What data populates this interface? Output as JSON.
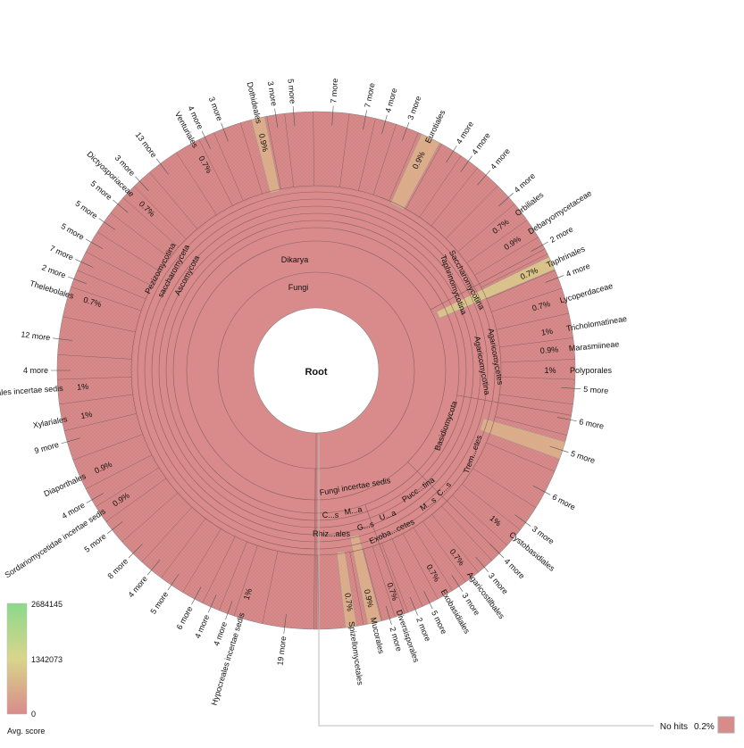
{
  "chart_data": {
    "type": "sunburst",
    "title": "",
    "root": {
      "label": "Root"
    },
    "inner_labels": [
      "Fungi",
      "Dikarya",
      "Ascomycota",
      "saccharomyceta",
      "Pezizomycotina",
      "Saccharomycotina",
      "Taphrinomycotina",
      "Agaricomycetes",
      "Agaricomycotina",
      "Basidiomycota",
      "Trem...etes",
      "Fungi incertae sedis",
      "C...s",
      "M...a",
      "Rhiz...ales",
      "G...s",
      "U...a",
      "Pucc...tina",
      "Exoba...cetes",
      "M...s",
      "C...s"
    ],
    "outer_labels": [
      {
        "label": "7 more"
      },
      {
        "label": "7 more"
      },
      {
        "label": "4 more"
      },
      {
        "label": "3 more"
      },
      {
        "label": "Eurotiales",
        "pct": "0.9%"
      },
      {
        "label": "4 more"
      },
      {
        "label": "4 more"
      },
      {
        "label": "4 more"
      },
      {
        "label": "4 more"
      },
      {
        "label": "Orbiliales",
        "pct": "0.7%"
      },
      {
        "label": "Debaryomycetaceae",
        "pct": "0.9%"
      },
      {
        "label": "2 more"
      },
      {
        "label": "Taphrinales",
        "pct": "0.7%"
      },
      {
        "label": "4 more"
      },
      {
        "label": "Lycoperdaceae",
        "pct": "0.7%"
      },
      {
        "label": "Tricholomatineae",
        "pct": "1%"
      },
      {
        "label": "Marasmiineae",
        "pct": "0.9%"
      },
      {
        "label": "Polyporales",
        "pct": "1%"
      },
      {
        "label": "5 more"
      },
      {
        "label": "6 more"
      },
      {
        "label": "5 more"
      },
      {
        "label": "6 more"
      },
      {
        "label": "3 more"
      },
      {
        "label": "Cystobasidiales",
        "pct": "1%"
      },
      {
        "label": "4 more"
      },
      {
        "label": "3 more"
      },
      {
        "label": "Agaricostilbales",
        "pct": "0.7%"
      },
      {
        "label": "3 more"
      },
      {
        "label": "Exobasidiales",
        "pct": "0.7%"
      },
      {
        "label": "5 more"
      },
      {
        "label": "2 more"
      },
      {
        "label": "Diversisporales",
        "pct": "0.7%"
      },
      {
        "label": "2 more"
      },
      {
        "label": "Mucorales",
        "pct": "0.9%"
      },
      {
        "label": "Spizellomycetales",
        "pct": "0.7%"
      },
      {
        "label": "19 more"
      },
      {
        "label": "Hypocreales incertae sedis",
        "pct": "1%"
      },
      {
        "label": "4 more"
      },
      {
        "label": "4 more"
      },
      {
        "label": "6 more"
      },
      {
        "label": "5 more"
      },
      {
        "label": "4 more"
      },
      {
        "label": "8 more"
      },
      {
        "label": "5 more"
      },
      {
        "label": "Sordariomycetidae incertae sedis",
        "pct": "0.9%"
      },
      {
        "label": "4 more"
      },
      {
        "label": "Diaporthales",
        "pct": "0.9%"
      },
      {
        "label": "9 more"
      },
      {
        "label": "Xylariales",
        "pct": "1%"
      },
      {
        "label": "...iales incertae sedis",
        "pct": "1%"
      },
      {
        "label": "4 more"
      },
      {
        "label": "12 more"
      },
      {
        "label": "Thelebolales",
        "pct": "0.7%"
      },
      {
        "label": "2 more"
      },
      {
        "label": "7 more"
      },
      {
        "label": "5 more"
      },
      {
        "label": "5 more"
      },
      {
        "label": "5 more"
      },
      {
        "label": "Dictyosporiaceae",
        "pct": "0.7%"
      },
      {
        "label": "3 more"
      },
      {
        "label": "13 more"
      },
      {
        "label": "Venturiales",
        "pct": "0.7%"
      },
      {
        "label": "4 more"
      },
      {
        "label": "3 more"
      },
      {
        "label": "Dothideales",
        "pct": "0.9%"
      },
      {
        "label": "3 more"
      },
      {
        "label": "5 more"
      }
    ],
    "no_hits": {
      "label": "No hits",
      "pct": "0.2%"
    },
    "color_scale": {
      "title": "Avg. score",
      "max": "2684145",
      "mid": "1342073",
      "min": "0",
      "colors": [
        "#d98b8b",
        "#d9d58b",
        "#8bd98b"
      ]
    },
    "colors": {
      "base": "#d98b8b",
      "tan": "#dcb38b",
      "yellow": "#d9cc8b"
    }
  }
}
